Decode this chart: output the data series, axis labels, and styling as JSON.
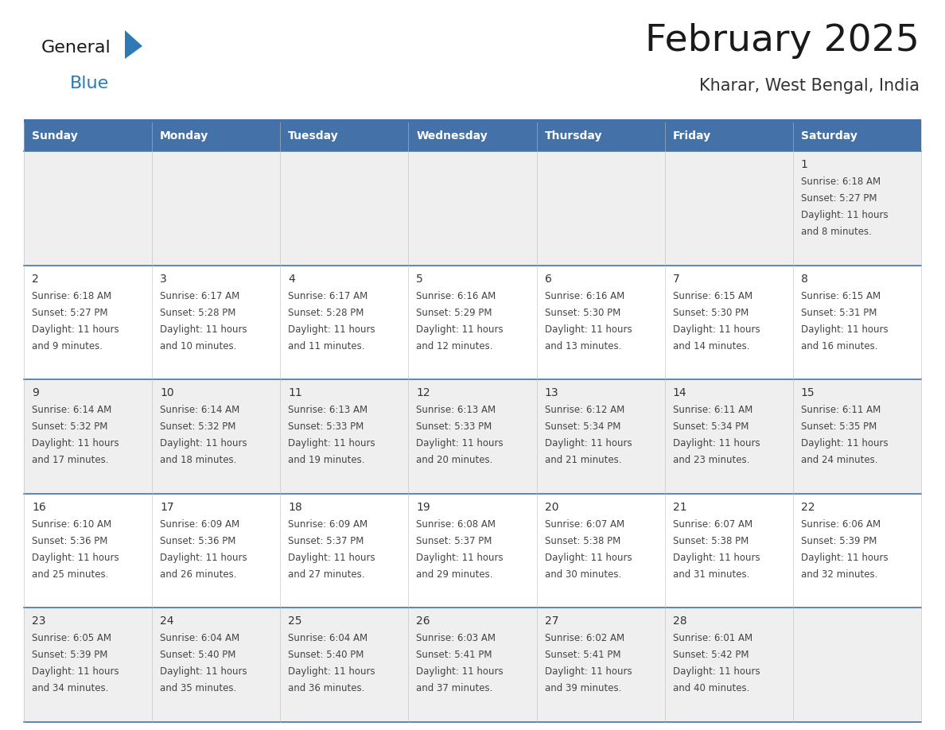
{
  "title": "February 2025",
  "subtitle": "Kharar, West Bengal, India",
  "days_of_week": [
    "Sunday",
    "Monday",
    "Tuesday",
    "Wednesday",
    "Thursday",
    "Friday",
    "Saturday"
  ],
  "header_bg": "#4472A8",
  "header_text": "#FFFFFF",
  "row_bg_odd": "#EFEFEF",
  "row_bg_even": "#FFFFFF",
  "divider_color": "#4472A8",
  "text_color": "#444444",
  "day_num_color": "#333333",
  "logo_blue_color": "#2E7AB5",
  "logo_dark_color": "#1a1a1a",
  "calendar_data": [
    {
      "day": 1,
      "col": 6,
      "row": 0,
      "sunrise": "6:18 AM",
      "sunset": "5:27 PM",
      "daylight_line1": "Daylight: 11 hours",
      "daylight_line2": "and 8 minutes."
    },
    {
      "day": 2,
      "col": 0,
      "row": 1,
      "sunrise": "6:18 AM",
      "sunset": "5:27 PM",
      "daylight_line1": "Daylight: 11 hours",
      "daylight_line2": "and 9 minutes."
    },
    {
      "day": 3,
      "col": 1,
      "row": 1,
      "sunrise": "6:17 AM",
      "sunset": "5:28 PM",
      "daylight_line1": "Daylight: 11 hours",
      "daylight_line2": "and 10 minutes."
    },
    {
      "day": 4,
      "col": 2,
      "row": 1,
      "sunrise": "6:17 AM",
      "sunset": "5:28 PM",
      "daylight_line1": "Daylight: 11 hours",
      "daylight_line2": "and 11 minutes."
    },
    {
      "day": 5,
      "col": 3,
      "row": 1,
      "sunrise": "6:16 AM",
      "sunset": "5:29 PM",
      "daylight_line1": "Daylight: 11 hours",
      "daylight_line2": "and 12 minutes."
    },
    {
      "day": 6,
      "col": 4,
      "row": 1,
      "sunrise": "6:16 AM",
      "sunset": "5:30 PM",
      "daylight_line1": "Daylight: 11 hours",
      "daylight_line2": "and 13 minutes."
    },
    {
      "day": 7,
      "col": 5,
      "row": 1,
      "sunrise": "6:15 AM",
      "sunset": "5:30 PM",
      "daylight_line1": "Daylight: 11 hours",
      "daylight_line2": "and 14 minutes."
    },
    {
      "day": 8,
      "col": 6,
      "row": 1,
      "sunrise": "6:15 AM",
      "sunset": "5:31 PM",
      "daylight_line1": "Daylight: 11 hours",
      "daylight_line2": "and 16 minutes."
    },
    {
      "day": 9,
      "col": 0,
      "row": 2,
      "sunrise": "6:14 AM",
      "sunset": "5:32 PM",
      "daylight_line1": "Daylight: 11 hours",
      "daylight_line2": "and 17 minutes."
    },
    {
      "day": 10,
      "col": 1,
      "row": 2,
      "sunrise": "6:14 AM",
      "sunset": "5:32 PM",
      "daylight_line1": "Daylight: 11 hours",
      "daylight_line2": "and 18 minutes."
    },
    {
      "day": 11,
      "col": 2,
      "row": 2,
      "sunrise": "6:13 AM",
      "sunset": "5:33 PM",
      "daylight_line1": "Daylight: 11 hours",
      "daylight_line2": "and 19 minutes."
    },
    {
      "day": 12,
      "col": 3,
      "row": 2,
      "sunrise": "6:13 AM",
      "sunset": "5:33 PM",
      "daylight_line1": "Daylight: 11 hours",
      "daylight_line2": "and 20 minutes."
    },
    {
      "day": 13,
      "col": 4,
      "row": 2,
      "sunrise": "6:12 AM",
      "sunset": "5:34 PM",
      "daylight_line1": "Daylight: 11 hours",
      "daylight_line2": "and 21 minutes."
    },
    {
      "day": 14,
      "col": 5,
      "row": 2,
      "sunrise": "6:11 AM",
      "sunset": "5:34 PM",
      "daylight_line1": "Daylight: 11 hours",
      "daylight_line2": "and 23 minutes."
    },
    {
      "day": 15,
      "col": 6,
      "row": 2,
      "sunrise": "6:11 AM",
      "sunset": "5:35 PM",
      "daylight_line1": "Daylight: 11 hours",
      "daylight_line2": "and 24 minutes."
    },
    {
      "day": 16,
      "col": 0,
      "row": 3,
      "sunrise": "6:10 AM",
      "sunset": "5:36 PM",
      "daylight_line1": "Daylight: 11 hours",
      "daylight_line2": "and 25 minutes."
    },
    {
      "day": 17,
      "col": 1,
      "row": 3,
      "sunrise": "6:09 AM",
      "sunset": "5:36 PM",
      "daylight_line1": "Daylight: 11 hours",
      "daylight_line2": "and 26 minutes."
    },
    {
      "day": 18,
      "col": 2,
      "row": 3,
      "sunrise": "6:09 AM",
      "sunset": "5:37 PM",
      "daylight_line1": "Daylight: 11 hours",
      "daylight_line2": "and 27 minutes."
    },
    {
      "day": 19,
      "col": 3,
      "row": 3,
      "sunrise": "6:08 AM",
      "sunset": "5:37 PM",
      "daylight_line1": "Daylight: 11 hours",
      "daylight_line2": "and 29 minutes."
    },
    {
      "day": 20,
      "col": 4,
      "row": 3,
      "sunrise": "6:07 AM",
      "sunset": "5:38 PM",
      "daylight_line1": "Daylight: 11 hours",
      "daylight_line2": "and 30 minutes."
    },
    {
      "day": 21,
      "col": 5,
      "row": 3,
      "sunrise": "6:07 AM",
      "sunset": "5:38 PM",
      "daylight_line1": "Daylight: 11 hours",
      "daylight_line2": "and 31 minutes."
    },
    {
      "day": 22,
      "col": 6,
      "row": 3,
      "sunrise": "6:06 AM",
      "sunset": "5:39 PM",
      "daylight_line1": "Daylight: 11 hours",
      "daylight_line2": "and 32 minutes."
    },
    {
      "day": 23,
      "col": 0,
      "row": 4,
      "sunrise": "6:05 AM",
      "sunset": "5:39 PM",
      "daylight_line1": "Daylight: 11 hours",
      "daylight_line2": "and 34 minutes."
    },
    {
      "day": 24,
      "col": 1,
      "row": 4,
      "sunrise": "6:04 AM",
      "sunset": "5:40 PM",
      "daylight_line1": "Daylight: 11 hours",
      "daylight_line2": "and 35 minutes."
    },
    {
      "day": 25,
      "col": 2,
      "row": 4,
      "sunrise": "6:04 AM",
      "sunset": "5:40 PM",
      "daylight_line1": "Daylight: 11 hours",
      "daylight_line2": "and 36 minutes."
    },
    {
      "day": 26,
      "col": 3,
      "row": 4,
      "sunrise": "6:03 AM",
      "sunset": "5:41 PM",
      "daylight_line1": "Daylight: 11 hours",
      "daylight_line2": "and 37 minutes."
    },
    {
      "day": 27,
      "col": 4,
      "row": 4,
      "sunrise": "6:02 AM",
      "sunset": "5:41 PM",
      "daylight_line1": "Daylight: 11 hours",
      "daylight_line2": "and 39 minutes."
    },
    {
      "day": 28,
      "col": 5,
      "row": 4,
      "sunrise": "6:01 AM",
      "sunset": "5:42 PM",
      "daylight_line1": "Daylight: 11 hours",
      "daylight_line2": "and 40 minutes."
    }
  ],
  "num_rows": 5,
  "num_cols": 7
}
